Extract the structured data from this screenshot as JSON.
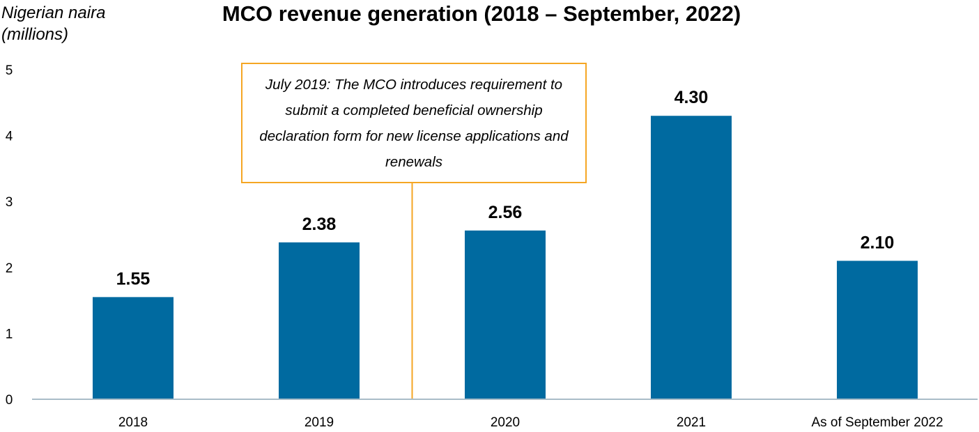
{
  "chart_data": {
    "type": "bar",
    "title": "MCO revenue generation (2018 – September, 2022)",
    "ylabel": "Nigerian naira (millions)",
    "xlabel": "",
    "categories": [
      "2018",
      "2019",
      "2020",
      "2021",
      "As of September 2022"
    ],
    "values": [
      1.55,
      2.38,
      2.56,
      4.3,
      2.1
    ],
    "value_labels": [
      "1.55",
      "2.38",
      "2.56",
      "4.30",
      "2.10"
    ],
    "ylim": [
      0,
      5
    ],
    "yticks": [
      "0",
      "1",
      "2",
      "3",
      "4",
      "5"
    ],
    "grid": false,
    "legend": "none",
    "bar_color": "#006aa0",
    "annotation": {
      "text": "July 2019: The MCO introduces requirement to submit a completed beneficial ownership declaration form for new license applications and renewals",
      "border_color": "#f5a623"
    }
  }
}
